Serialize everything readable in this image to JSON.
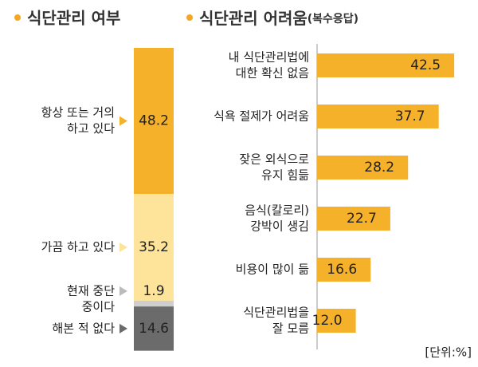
{
  "chart_data": [
    {
      "type": "stacked-bar",
      "title": "식단관리 여부",
      "categories": [
        [
          "항상 또는 거의",
          "하고 있다"
        ],
        [
          "가끔 하고 있다"
        ],
        [
          "현재 중단",
          "중이다"
        ],
        [
          "해본 적 없다"
        ]
      ],
      "values": [
        48.2,
        35.2,
        1.9,
        14.6
      ],
      "colors": [
        "#f5b12a",
        "#fde49a",
        "#cfcfcf",
        "#6b6b6b"
      ]
    },
    {
      "type": "hbar",
      "title": "식단관리 어려움",
      "subtitle": "(복수응답)",
      "categories": [
        [
          "내 식단관리법에",
          "대한 확신 없음"
        ],
        [
          "식욕 절제가 어려움"
        ],
        [
          "잦은 외식으로",
          "유지 힘듦"
        ],
        [
          "음식(칼로리)",
          "강박이 생김"
        ],
        [
          "비용이 많이 듦"
        ],
        [
          "식단관리법을",
          "잘 모름"
        ]
      ],
      "values": [
        42.5,
        37.7,
        28.2,
        22.7,
        16.6,
        12.0
      ],
      "value_labels": [
        "42.5",
        "37.7",
        "28.2",
        "22.7",
        "16.6",
        "12.0"
      ],
      "color": "#f5b12a",
      "note": "[단위:%]"
    }
  ]
}
